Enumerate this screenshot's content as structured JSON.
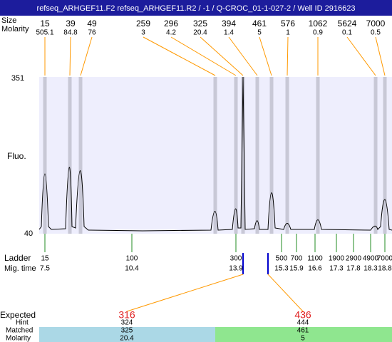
{
  "header": {
    "title": "refseq_ARHGEF11.F2  refseq_ARHGEF11.R2 / -1 / Q-CROC_01-1-027-2 / Well ID 2916623"
  },
  "labels": {
    "size": "Size",
    "molarity": "Molarity",
    "fluo": "Fluo.",
    "ladder": "Ladder",
    "mig_time": "Mig. time",
    "expected": "Expected",
    "hint": "Hint",
    "matched": "Matched",
    "matched_molarity": "Molarity"
  },
  "y_axis": {
    "top": "351",
    "bottom": "40"
  },
  "peaks": [
    {
      "size": "15",
      "molarity": "505.1"
    },
    {
      "size": "39",
      "molarity": "84.8"
    },
    {
      "size": "49",
      "molarity": "76"
    },
    {
      "size": "259",
      "molarity": "3"
    },
    {
      "size": "296",
      "molarity": "4.2"
    },
    {
      "size": "325",
      "molarity": "20.4"
    },
    {
      "size": "394",
      "molarity": "1.4"
    },
    {
      "size": "461",
      "molarity": "5"
    },
    {
      "size": "576",
      "molarity": "1"
    },
    {
      "size": "1062",
      "molarity": "0.9"
    },
    {
      "size": "5624",
      "molarity": "0.1"
    },
    {
      "size": "7000",
      "molarity": "0.5"
    }
  ],
  "ladder": [
    {
      "size": "15",
      "mig_time": "7.5"
    },
    {
      "size": "100",
      "mig_time": "10.4"
    },
    {
      "size": "300",
      "mig_time": "13.9"
    },
    {
      "size": "500",
      "mig_time": "15.3"
    },
    {
      "size": "700",
      "mig_time": "15.9"
    },
    {
      "size": "1100",
      "mig_time": "16.6"
    },
    {
      "size": "1900",
      "mig_time": "17.3"
    },
    {
      "size": "2900",
      "mig_time": "17.8"
    },
    {
      "size": "4900",
      "mig_time": "18.3"
    },
    {
      "size": "7000",
      "mig_time": "18.8"
    }
  ],
  "expected": [
    {
      "expected": "316",
      "hint": "324",
      "matched": "325",
      "molarity": "20.4"
    },
    {
      "expected": "436",
      "hint": "444",
      "matched": "461",
      "molarity": "5"
    }
  ]
}
